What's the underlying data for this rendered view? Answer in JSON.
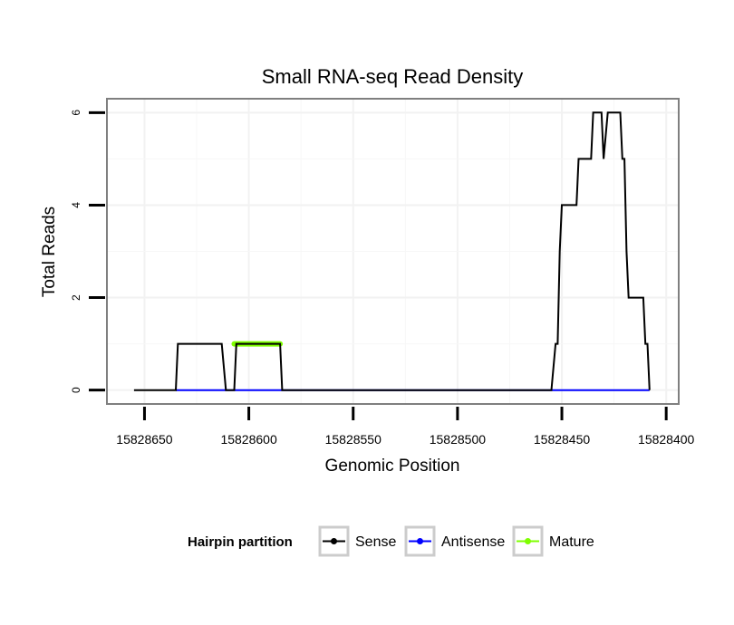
{
  "chart_data": {
    "type": "line",
    "title": "Small RNA-seq Read Density",
    "xlabel": "Genomic Position",
    "ylabel": "Total Reads",
    "x_reversed": true,
    "xlim": [
      15828668,
      15828394
    ],
    "ylim": [
      -0.3,
      6.3
    ],
    "x_ticks": [
      15828650,
      15828600,
      15828550,
      15828500,
      15828450,
      15828400
    ],
    "x_tick_labels": [
      "15828650",
      "15828600",
      "15828550",
      "15828500",
      "15828450",
      "15828400"
    ],
    "y_ticks": [
      0,
      2,
      4,
      6
    ],
    "y_tick_labels": [
      "0",
      "2",
      "4",
      "6"
    ],
    "grid": true,
    "legend": {
      "title": "Hairpin partition",
      "position": "bottom",
      "entries": [
        "Sense",
        "Antisense",
        "Mature"
      ]
    },
    "series": [
      {
        "name": "Sense",
        "color": "#000000",
        "x": [
          15828655,
          15828635,
          15828634,
          15828613,
          15828611,
          15828607,
          15828606,
          15828585,
          15828584,
          15828455,
          15828453,
          15828452,
          15828451,
          15828450,
          15828443,
          15828442,
          15828436,
          15828435,
          15828431,
          15828430,
          15828428,
          15828427,
          15828422,
          15828421,
          15828420,
          15828419,
          15828418,
          15828417,
          15828411,
          15828410,
          15828409,
          15828408
        ],
        "y": [
          0,
          0,
          1,
          1,
          0,
          0,
          1,
          1,
          0,
          0,
          1,
          1,
          3,
          4,
          4,
          5,
          5,
          6,
          6,
          5,
          6,
          6,
          6,
          5,
          5,
          3,
          2,
          2,
          2,
          1,
          1,
          0
        ]
      },
      {
        "name": "Antisense",
        "color": "#0000ff",
        "x": [
          15828635,
          15828408
        ],
        "y": [
          0,
          0
        ]
      },
      {
        "name": "Mature",
        "color": "#7fff00",
        "x": [
          15828607,
          15828585
        ],
        "y": [
          1,
          1
        ]
      }
    ]
  }
}
